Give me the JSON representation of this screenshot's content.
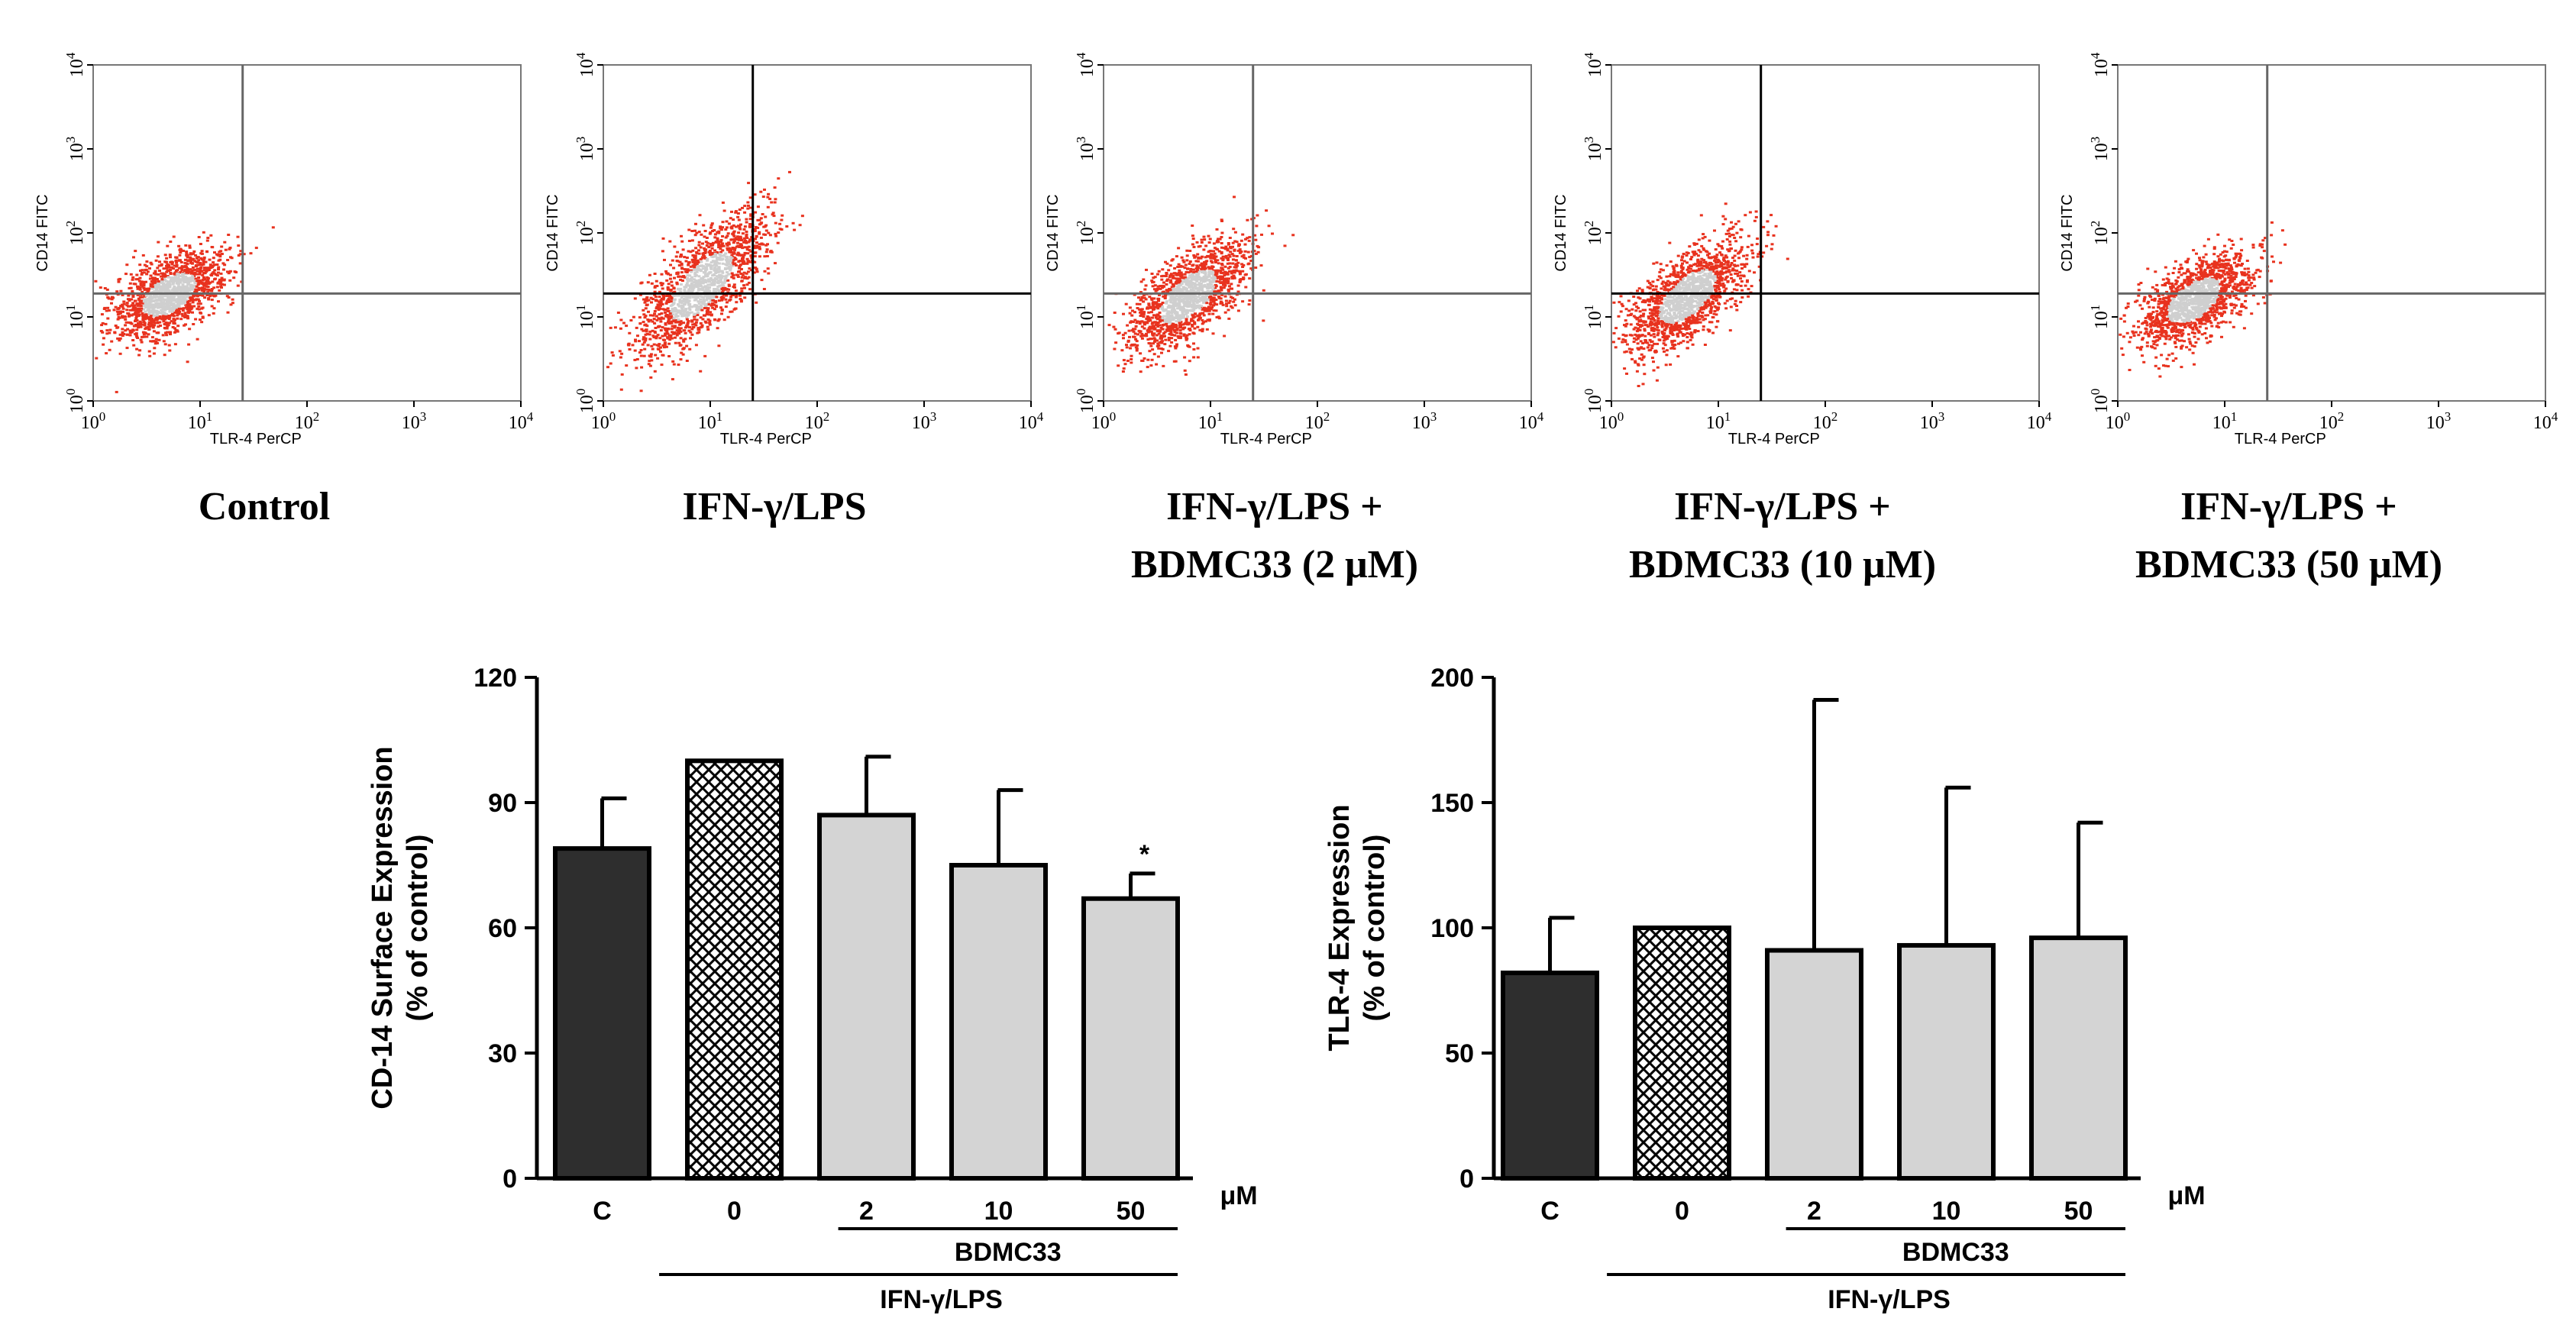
{
  "flow_panels": [
    {
      "condition_lines": [
        "Control"
      ],
      "x_label": "TLR-4 PerCP",
      "y_label": "CD14 FITC",
      "x_ticks": [
        "10^0",
        "10^1",
        "10^2",
        "10^3",
        "10^4"
      ],
      "y_ticks": [
        "10^0",
        "10^1",
        "10^2",
        "10^3",
        "10^4"
      ],
      "quadrant_x": 25,
      "quadrant_y": 19,
      "cloud": {
        "cx": 5,
        "cy": 19,
        "spread": 0.34,
        "slope": 0.55
      }
    },
    {
      "condition_lines": [
        "IFN-γ/LPS"
      ],
      "x_label": "TLR-4 PerCP",
      "y_label": "CD14 FITC",
      "x_ticks": [
        "10^0",
        "10^1",
        "10^2",
        "10^3",
        "10^4"
      ],
      "y_ticks": [
        "10^0",
        "10^1",
        "10^2",
        "10^3",
        "10^4"
      ],
      "quadrant_x": 25,
      "quadrant_y": 19,
      "cloud": {
        "cx": 8,
        "cy": 24,
        "spread": 0.4,
        "slope": 0.9
      }
    },
    {
      "condition_lines": [
        "IFN-γ/LPS +",
        "BDMC33 (2 μM)"
      ],
      "x_label": "TLR-4 PerCP",
      "y_label": "CD14 FITC",
      "x_ticks": [
        "10^0",
        "10^1",
        "10^2",
        "10^3",
        "10^4"
      ],
      "y_ticks": [
        "10^0",
        "10^1",
        "10^2",
        "10^3",
        "10^4"
      ],
      "quadrant_x": 25,
      "quadrant_y": 19,
      "cloud": {
        "cx": 6,
        "cy": 18,
        "spread": 0.36,
        "slope": 0.75
      }
    },
    {
      "condition_lines": [
        "IFN-γ/LPS +",
        "BDMC33 (10 μM)"
      ],
      "x_label": "TLR-4 PerCP",
      "y_label": "CD14 FITC",
      "x_ticks": [
        "10^0",
        "10^1",
        "10^2",
        "10^3",
        "10^4"
      ],
      "y_ticks": [
        "10^0",
        "10^1",
        "10^2",
        "10^3",
        "10^4"
      ],
      "quadrant_x": 25,
      "quadrant_y": 19,
      "cloud": {
        "cx": 5,
        "cy": 18,
        "spread": 0.36,
        "slope": 0.75
      }
    },
    {
      "condition_lines": [
        "IFN-γ/LPS +",
        "BDMC33 (50 μM)"
      ],
      "x_label": "TLR-4 PerCP",
      "y_label": "CD14 FITC",
      "x_ticks": [
        "10^0",
        "10^1",
        "10^2",
        "10^3",
        "10^4"
      ],
      "y_ticks": [
        "10^0",
        "10^1",
        "10^2",
        "10^3",
        "10^4"
      ],
      "quadrant_x": 25,
      "quadrant_y": 19,
      "cloud": {
        "cx": 5,
        "cy": 16,
        "spread": 0.34,
        "slope": 0.6
      }
    }
  ],
  "chart_data": [
    {
      "type": "bar",
      "ylabel_lines": [
        "CD-14 Surface Expression",
        "(% of control)"
      ],
      "categories": [
        "C",
        "0",
        "2",
        "10",
        "50"
      ],
      "values": [
        79,
        100,
        87,
        75,
        67
      ],
      "errors": [
        12,
        0,
        14,
        18,
        6
      ],
      "annotations": [
        "",
        "",
        "",
        "",
        "*"
      ],
      "fills": [
        "dark",
        "crosshatch",
        "light",
        "light",
        "light"
      ],
      "ylim": [
        0,
        120
      ],
      "yticks": [
        0,
        30,
        60,
        90,
        120
      ],
      "unit_label": "μM",
      "group_label_inner": "BDMC33",
      "group_label_outer": "IFN-γ/LPS"
    },
    {
      "type": "bar",
      "ylabel_lines": [
        "TLR-4 Expression",
        "(% of control)"
      ],
      "categories": [
        "C",
        "0",
        "2",
        "10",
        "50"
      ],
      "values": [
        82,
        100,
        91,
        93,
        96
      ],
      "errors": [
        22,
        0,
        100,
        63,
        46
      ],
      "annotations": [
        "",
        "",
        "",
        "",
        ""
      ],
      "fills": [
        "dark",
        "crosshatch",
        "light",
        "light",
        "light"
      ],
      "ylim": [
        0,
        200
      ],
      "yticks": [
        0,
        50,
        100,
        150,
        200
      ],
      "unit_label": "μM",
      "group_label_inner": "BDMC33",
      "group_label_outer": "IFN-γ/LPS"
    }
  ],
  "colors": {
    "dark_bar": "#2e2e2e",
    "light_bar": "#d4d4d4",
    "crosshatch": "#000000",
    "cloud_outer": "#e8321e",
    "cloud_inner": "#cfcfcf",
    "quadrant_line": "#666666"
  }
}
